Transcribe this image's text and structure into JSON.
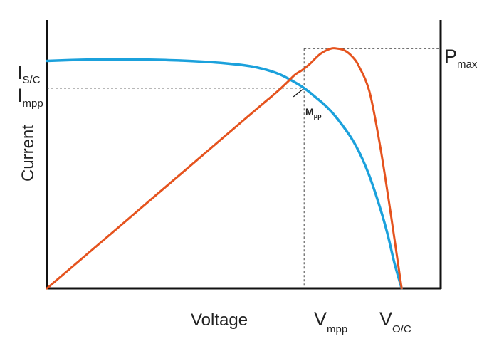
{
  "chart_data": {
    "type": "line",
    "title": "",
    "xlabel": "Voltage",
    "ylabel": "Current",
    "grid": false,
    "legend": "none",
    "xlim": [
      0,
      1.11
    ],
    "ylim": [
      0,
      1.18
    ],
    "series": [
      {
        "color": "#1ba1dc",
        "x": [
          0,
          0.1,
          0.2,
          0.3,
          0.4,
          0.5,
          0.58,
          0.65,
          0.7,
          0.725,
          0.75,
          0.8,
          0.85,
          0.88,
          0.91,
          0.94,
          0.96,
          0.98,
          1.0
        ],
        "y": [
          1.0,
          1.005,
          1.007,
          1.005,
          1.0,
          0.99,
          0.975,
          0.945,
          0.905,
          0.88,
          0.85,
          0.78,
          0.68,
          0.6,
          0.49,
          0.35,
          0.24,
          0.11,
          0.0
        ]
      },
      {
        "color": "#e5531e",
        "x": [
          0,
          0.1,
          0.2,
          0.3,
          0.4,
          0.5,
          0.6,
          0.65,
          0.68,
          0.7,
          0.72,
          0.74,
          0.77,
          0.8,
          0.82,
          0.84,
          0.86,
          0.88,
          0.91,
          0.94,
          0.97,
          1.0
        ],
        "y": [
          0.0,
          0.133,
          0.266,
          0.4,
          0.533,
          0.667,
          0.8,
          0.866,
          0.91,
          0.94,
          0.96,
          0.985,
          1.03,
          1.054,
          1.054,
          1.045,
          1.02,
          0.975,
          0.86,
          0.62,
          0.32,
          0.0
        ]
      }
    ],
    "reference_points": {
      "Isc": 1.0,
      "Impp": 0.88,
      "Vmpp": 0.725,
      "Voc": 1.0,
      "Pmax": 1.054
    },
    "labels": {
      "isc_main": "I",
      "isc_sub": "S/C",
      "impp_main": "I",
      "impp_sub": "mpp",
      "pmax_main": "P",
      "pmax_sub": "max",
      "vmpp_main": "V",
      "vmpp_sub": "mpp",
      "voc_main": "V",
      "voc_sub": "O/C",
      "mpp_main": "M",
      "mpp_sub": "pp"
    }
  }
}
